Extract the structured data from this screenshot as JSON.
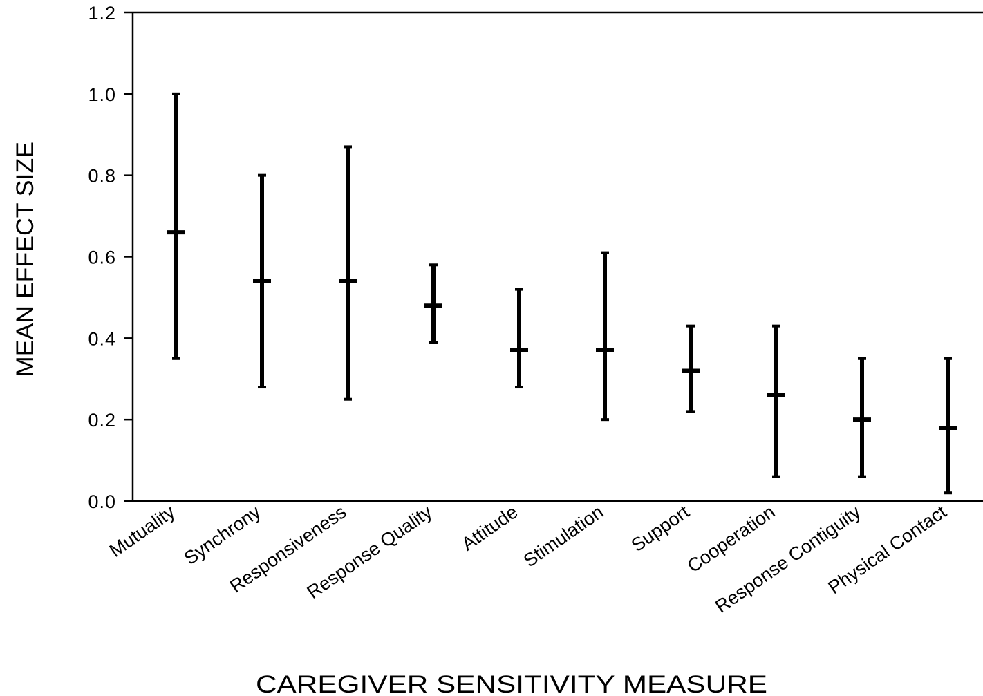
{
  "chart_data": {
    "type": "errorbar",
    "title": "",
    "xlabel": "CAREGIVER SENSITIVITY MEASURE",
    "ylabel": "MEAN EFFECT SIZE",
    "ylim": [
      0,
      1.2
    ],
    "yticks": [
      "0.0",
      "0.2",
      "0.4",
      "0.6",
      "0.8",
      "1.0",
      "1.2"
    ],
    "grid": false,
    "legend": "none",
    "categories": [
      "Mutuality",
      "Synchrony",
      "Responsiveness",
      "Response Quality",
      "Attitude",
      "Stimulation",
      "Support",
      "Cooperation",
      "Response Contiguity",
      "Physical Contact"
    ],
    "series": [
      {
        "values": [
          0.66,
          0.54,
          0.54,
          0.48,
          0.37,
          0.37,
          0.32,
          0.26,
          0.2,
          0.18
        ],
        "lower": [
          0.35,
          0.28,
          0.25,
          0.39,
          0.28,
          0.2,
          0.22,
          0.06,
          0.06,
          0.02
        ],
        "upper": [
          1.0,
          0.8,
          0.87,
          0.58,
          0.52,
          0.61,
          0.43,
          0.43,
          0.35,
          0.35
        ]
      }
    ],
    "colors": {
      "marks": "#000000",
      "axes": "#000000"
    }
  }
}
